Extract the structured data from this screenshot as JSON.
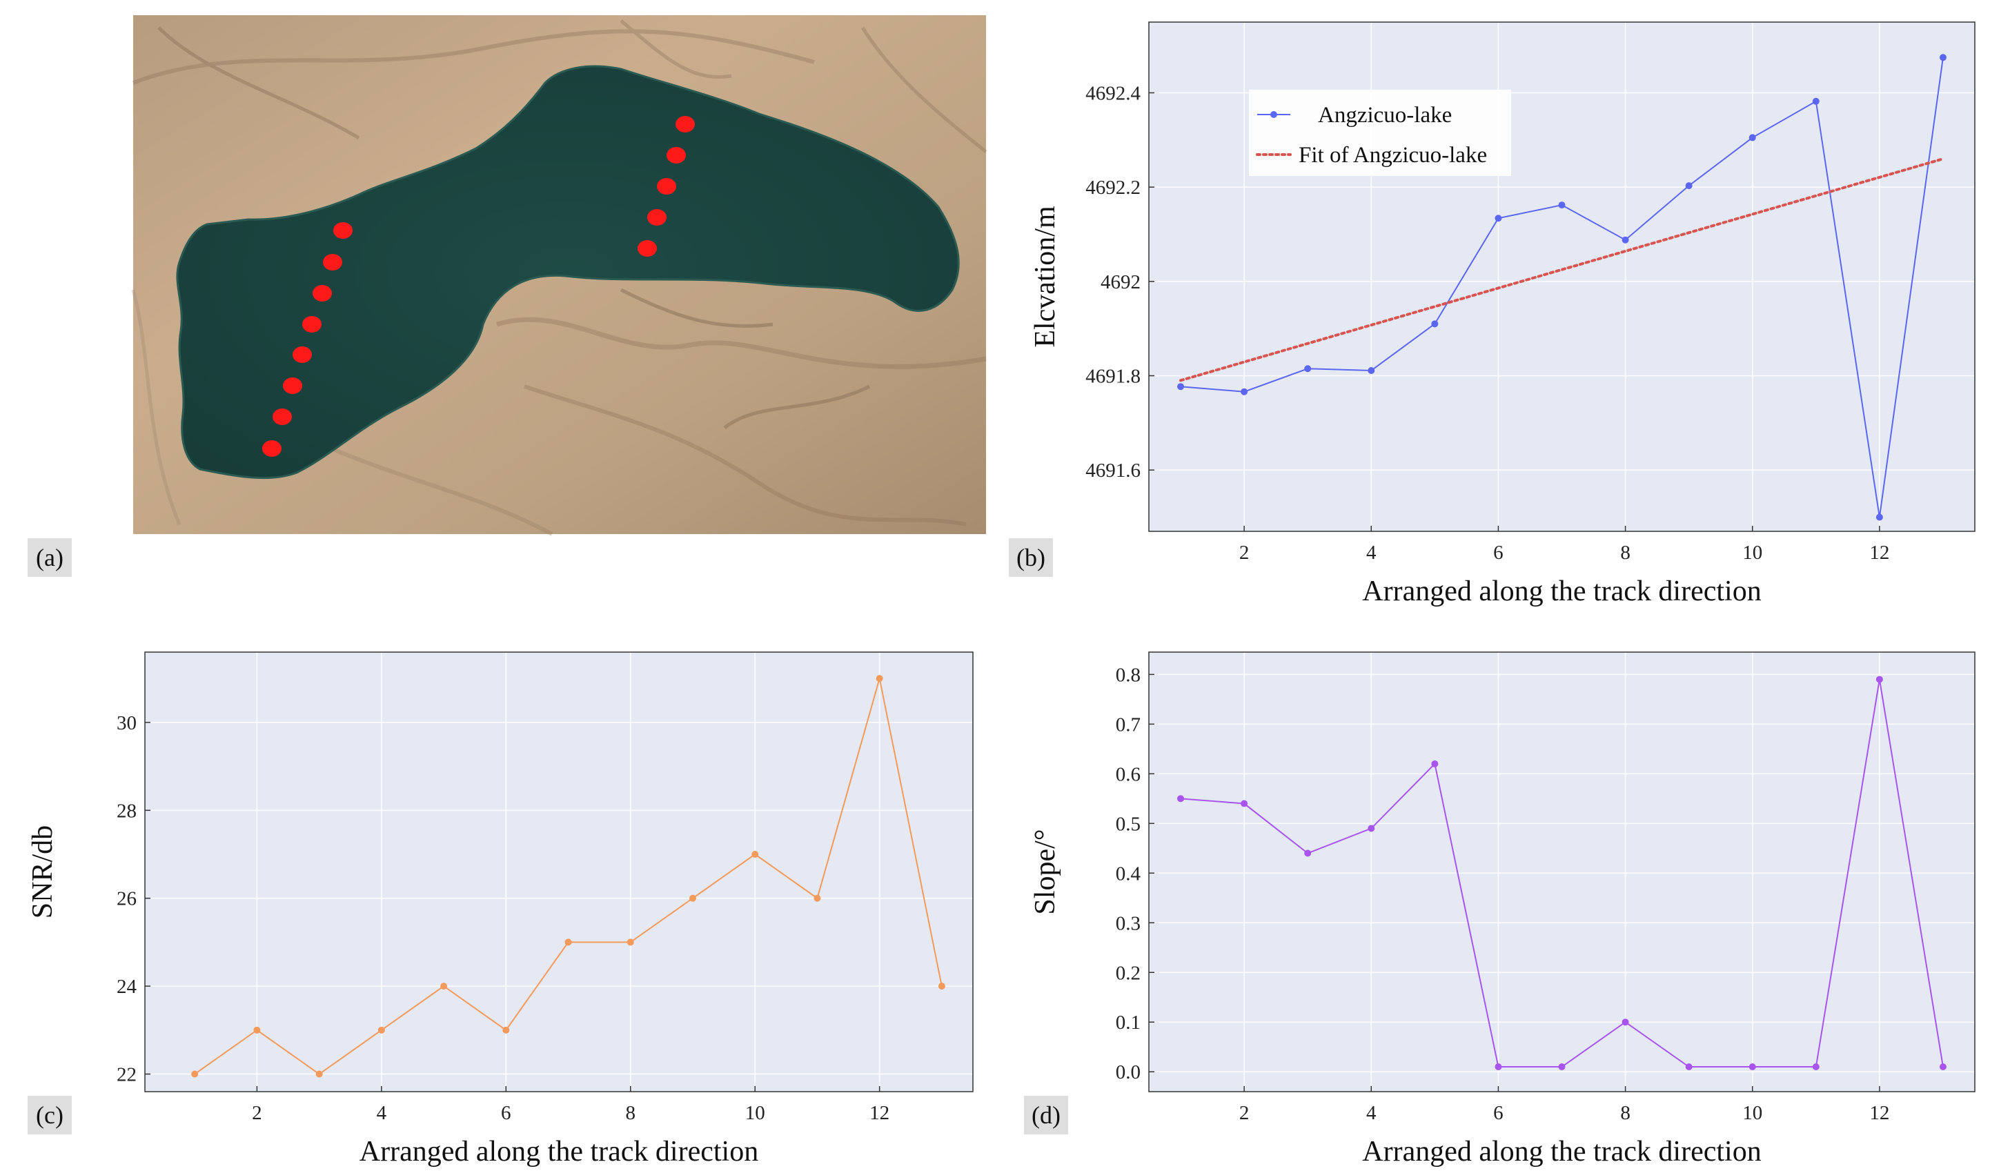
{
  "colors": {
    "plot_bg": "#e4e9f4",
    "grid": "#ffffff",
    "elevation": "#5b66f2",
    "fit": "#d9534f",
    "snr": "#f59a5b",
    "slope": "#a855f0",
    "lake": "#1d4a44",
    "track_points": "#ff1a1a",
    "label_box": "#dedede"
  },
  "panels": [
    {
      "label": "(a)"
    },
    {
      "label": "(b)"
    },
    {
      "label": "(c)"
    },
    {
      "label": "(d)"
    }
  ],
  "chart_data": [
    {
      "panel": "(a)",
      "type": "map",
      "description_hidden": true,
      "track_points_count_left": 8,
      "track_points_count_right": 5
    },
    {
      "panel": "(b)",
      "type": "line",
      "xlabel": "Arranged along the track direction",
      "ylabel": "Elcvation/m",
      "xlim": [
        0.5,
        13.5
      ],
      "ylim": [
        4691.47,
        4692.55
      ],
      "xticks": [
        2,
        4,
        6,
        8,
        10,
        12
      ],
      "yticks": [
        4691.6,
        4691.8,
        4692,
        4692.2,
        4692.4
      ],
      "ytick_labels": [
        "4691.6",
        "4691.8",
        "4692",
        "4692.2",
        "4692.4"
      ],
      "grid": true,
      "legend": "top-left",
      "x": [
        1,
        2,
        3,
        4,
        5,
        6,
        7,
        8,
        9,
        10,
        11,
        12,
        13
      ],
      "series": [
        {
          "name": "Angzicuo-lake",
          "values": [
            4691.777,
            4691.766,
            4691.815,
            4691.811,
            4691.91,
            4692.134,
            4692.162,
            4692.088,
            4692.203,
            4692.305,
            4692.382,
            4691.5,
            4692.475
          ]
        },
        {
          "name": "Fit of Angzicuo-lake",
          "style": "dotted",
          "x": [
            1,
            13
          ],
          "values": [
            4691.79,
            4692.26
          ]
        }
      ]
    },
    {
      "panel": "(c)",
      "type": "line",
      "xlabel": "Arranged along the track direction",
      "ylabel": "SNR/db",
      "xlim": [
        0.2,
        13.5
      ],
      "ylim": [
        21.6,
        31.6
      ],
      "xticks": [
        2,
        4,
        6,
        8,
        10,
        12
      ],
      "yticks": [
        22,
        24,
        26,
        28,
        30
      ],
      "grid": true,
      "x": [
        1,
        2,
        3,
        4,
        5,
        6,
        7,
        8,
        9,
        10,
        11,
        12,
        13
      ],
      "values": [
        22,
        23,
        22,
        23,
        24,
        23,
        25,
        25,
        26,
        27,
        26,
        31,
        24
      ]
    },
    {
      "panel": "(d)",
      "type": "line",
      "xlabel": "Arranged along the track direction",
      "ylabel": "Slope/°",
      "xlim": [
        0.5,
        13.5
      ],
      "ylim": [
        -0.04,
        0.845
      ],
      "xticks": [
        2,
        4,
        6,
        8,
        10,
        12
      ],
      "yticks": [
        0.0,
        0.1,
        0.2,
        0.3,
        0.4,
        0.5,
        0.6,
        0.7,
        0.8
      ],
      "ytick_labels": [
        "0.0",
        "0.1",
        "0.2",
        "0.3",
        "0.4",
        "0.5",
        "0.6",
        "0.7",
        "0.8"
      ],
      "grid": true,
      "x": [
        1,
        2,
        3,
        4,
        5,
        6,
        7,
        8,
        9,
        10,
        11,
        12,
        13
      ],
      "values": [
        0.55,
        0.54,
        0.44,
        0.49,
        0.62,
        0.01,
        0.01,
        0.1,
        0.01,
        0.01,
        0.01,
        0.79,
        0.01
      ]
    }
  ]
}
